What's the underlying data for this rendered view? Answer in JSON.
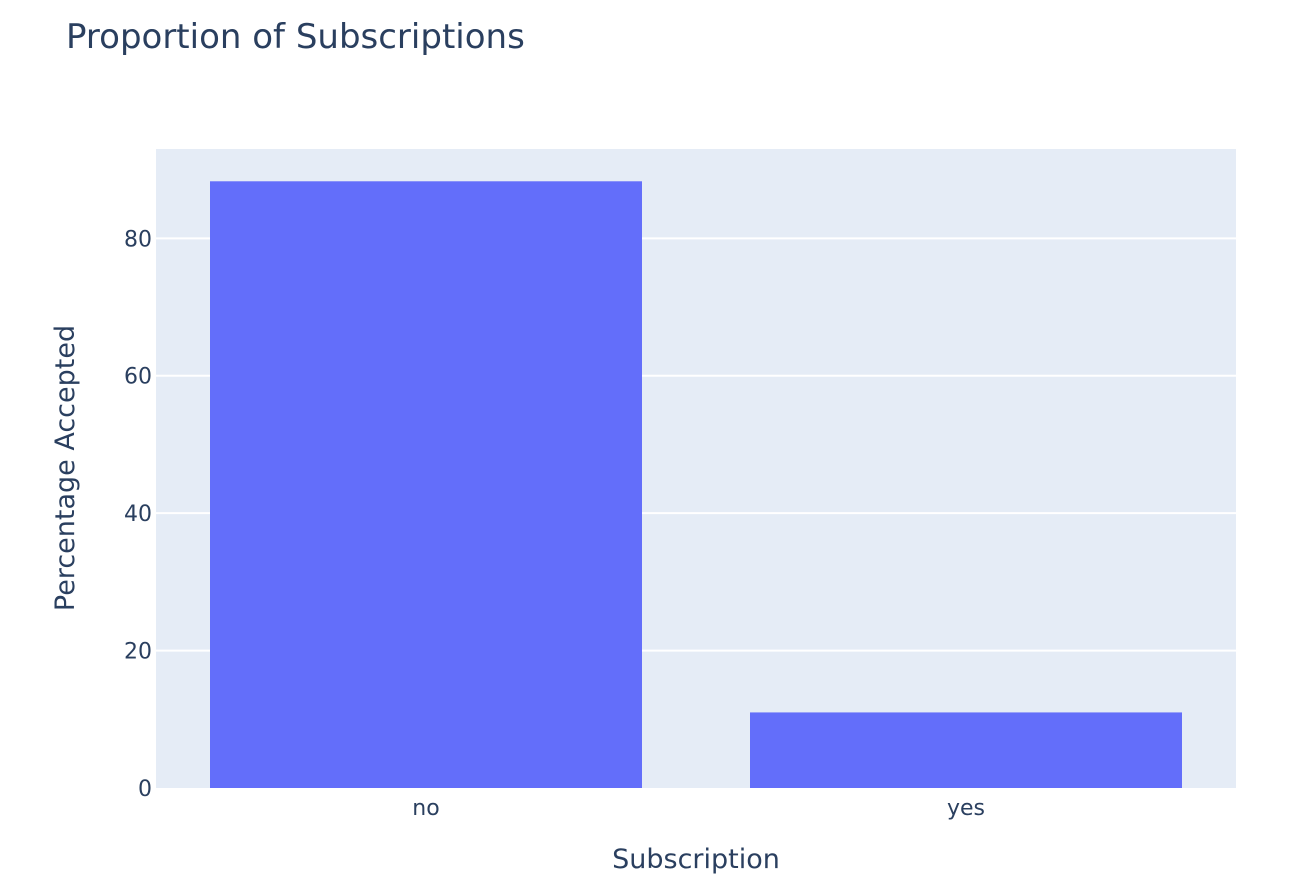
{
  "chart_data": {
    "type": "bar",
    "title": "Proportion of Subscriptions",
    "xlabel": "Subscription",
    "ylabel": "Percentage Accepted",
    "categories": [
      "no",
      "yes"
    ],
    "values": [
      88.3,
      11.0
    ],
    "ylim": [
      0,
      93
    ],
    "yticks": [
      0,
      20,
      40,
      60,
      80
    ],
    "ytick_labels": [
      "0",
      "20",
      "40",
      "60",
      "80"
    ],
    "grid": true,
    "legend": "none",
    "colors": {
      "bar": "#636efa",
      "plot_background": "#e5ecf6",
      "gridline": "#ffffff",
      "text": "#2a3f5f"
    }
  }
}
